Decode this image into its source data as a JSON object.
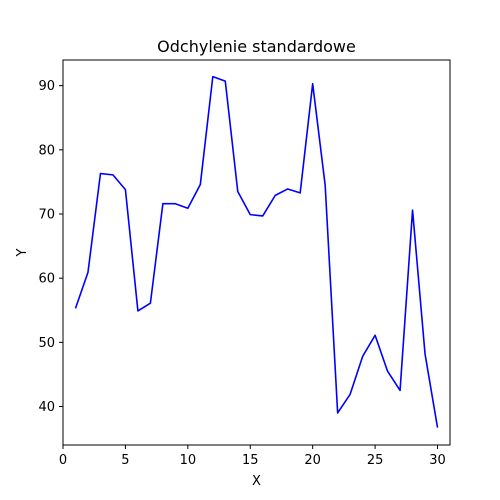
{
  "chart_data": {
    "type": "line",
    "title": "Odchylenie standardowe",
    "xlabel": "X",
    "ylabel": "Y",
    "xlim": [
      0.0,
      31.0
    ],
    "ylim": [
      34.0,
      94.0
    ],
    "xticks": [
      0,
      5,
      10,
      15,
      20,
      25,
      30
    ],
    "yticks": [
      40,
      50,
      60,
      70,
      80,
      90
    ],
    "grid": false,
    "series": [
      {
        "color": "#0000ff",
        "x": [
          1,
          2,
          3,
          4,
          5,
          6,
          7,
          8,
          9,
          10,
          11,
          12,
          13,
          14,
          15,
          16,
          17,
          18,
          19,
          20,
          21,
          22,
          23,
          24,
          25,
          26,
          27,
          28,
          29,
          30
        ],
        "y": [
          55.3,
          60.9,
          76.3,
          76.1,
          73.8,
          54.9,
          56.1,
          71.6,
          71.6,
          70.9,
          74.6,
          91.4,
          90.7,
          73.5,
          69.9,
          69.7,
          72.9,
          73.9,
          73.3,
          90.3,
          74.5,
          39.0,
          41.9,
          47.8,
          51.1,
          45.5,
          42.5,
          70.6,
          48.2,
          36.7
        ]
      }
    ]
  }
}
